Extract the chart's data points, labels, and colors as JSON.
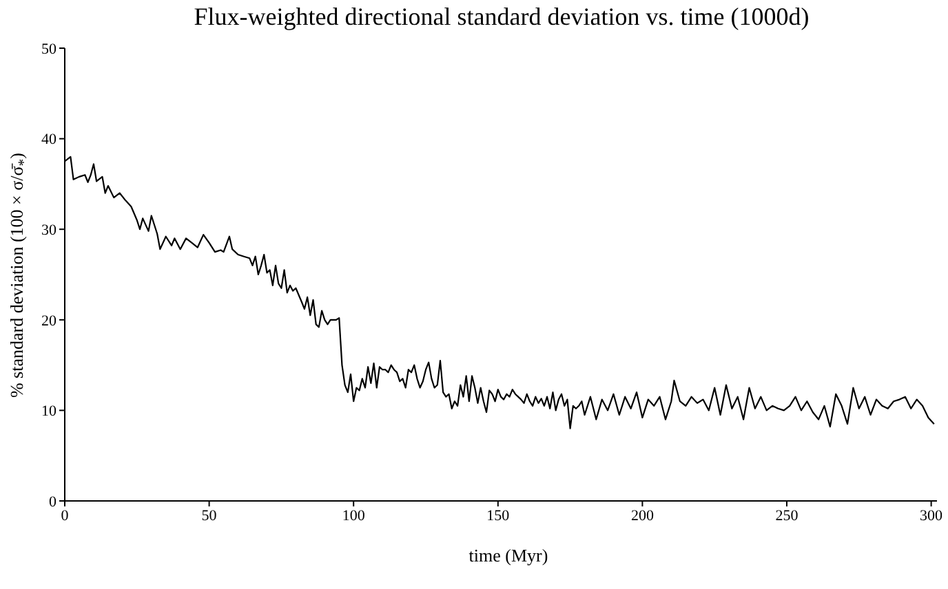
{
  "chart_data": {
    "type": "line",
    "title": "Flux-weighted directional standard deviation vs. time (1000d)",
    "xlabel": "time (Myr)",
    "ylabel": "% standard deviation (100 × σ/σ̄$_{*}$)",
    "xlim": [
      0,
      302
    ],
    "xticks": [
      0,
      50,
      100,
      150,
      200,
      250,
      300
    ],
    "ylim": [
      0,
      50
    ],
    "yticks": [
      0,
      10,
      20,
      30,
      40,
      50
    ],
    "grid": false,
    "legend": false,
    "marker": "none",
    "line_style": "solid",
    "series": [
      {
        "color": "#000000",
        "x": [
          0,
          2,
          3,
          5,
          7,
          8,
          9,
          10,
          11,
          13,
          14,
          15,
          17,
          19,
          21,
          23,
          25,
          26,
          27,
          29,
          30,
          32,
          33,
          35,
          37,
          38,
          40,
          42,
          44,
          46,
          48,
          50,
          52,
          54,
          55,
          57,
          58,
          60,
          62,
          64,
          65,
          66,
          67,
          68,
          69,
          70,
          71,
          72,
          73,
          74,
          75,
          76,
          77,
          78,
          79,
          80,
          82,
          83,
          84,
          85,
          86,
          87,
          88,
          89,
          90,
          91,
          92,
          94,
          95,
          96,
          97,
          98,
          99,
          100,
          101,
          102,
          103,
          104,
          105,
          106,
          107,
          108,
          109,
          110,
          111,
          112,
          113,
          114,
          115,
          116,
          117,
          118,
          119,
          120,
          121,
          122,
          123,
          124,
          125,
          126,
          127,
          128,
          129,
          130,
          131,
          132,
          133,
          134,
          135,
          136,
          137,
          138,
          139,
          140,
          141,
          142,
          143,
          144,
          145,
          146,
          147,
          148,
          149,
          150,
          151,
          152,
          153,
          154,
          155,
          156,
          157,
          158,
          159,
          160,
          161,
          162,
          163,
          164,
          165,
          166,
          167,
          168,
          169,
          170,
          171,
          172,
          173,
          174,
          175,
          176,
          177,
          178,
          179,
          180,
          182,
          184,
          186,
          188,
          190,
          192,
          194,
          196,
          198,
          200,
          202,
          204,
          206,
          208,
          210,
          211,
          213,
          215,
          217,
          219,
          221,
          223,
          225,
          227,
          229,
          231,
          233,
          235,
          237,
          239,
          241,
          243,
          245,
          247,
          249,
          251,
          253,
          255,
          257,
          259,
          261,
          263,
          265,
          267,
          269,
          271,
          273,
          275,
          277,
          279,
          281,
          283,
          285,
          287,
          289,
          291,
          293,
          295,
          297,
          299,
          301
        ],
        "values": [
          37.5,
          38,
          35.5,
          35.8,
          36,
          35.2,
          36,
          37.2,
          35.3,
          35.8,
          34,
          34.8,
          33.5,
          34,
          33.2,
          32.5,
          31,
          30,
          31.2,
          29.8,
          31.5,
          29.5,
          27.8,
          29.2,
          28.2,
          29,
          27.8,
          29,
          28.5,
          28,
          29.4,
          28.5,
          27.5,
          27.7,
          27.5,
          29.2,
          27.8,
          27.2,
          27,
          26.8,
          26,
          27,
          25,
          26,
          27.2,
          25.2,
          25.5,
          23.8,
          26,
          24,
          23.5,
          25.5,
          23,
          23.8,
          23.2,
          23.5,
          22,
          21.2,
          22.5,
          20.5,
          22.2,
          19.5,
          19.2,
          21,
          20,
          19.5,
          20,
          20,
          20.2,
          15,
          12.8,
          12,
          14,
          11,
          12.5,
          12.2,
          13.5,
          12.5,
          14.8,
          13,
          15.2,
          12.5,
          14.8,
          14.5,
          14.5,
          14.2,
          15,
          14.5,
          14.2,
          13.2,
          13.5,
          12.5,
          14.5,
          14.2,
          15,
          13.5,
          12.5,
          13.2,
          14.5,
          15.3,
          13.5,
          12.5,
          12.8,
          15.5,
          12,
          11.5,
          11.8,
          10.2,
          11,
          10.5,
          12.8,
          11.5,
          13.8,
          11,
          13.8,
          12.5,
          10.8,
          12.5,
          11,
          9.8,
          12.2,
          11.8,
          11,
          12.3,
          11.5,
          11.2,
          11.8,
          11.5,
          12.3,
          11.8,
          11.5,
          11.2,
          10.8,
          11.8,
          11,
          10.5,
          11.5,
          10.8,
          11.3,
          10.5,
          11.5,
          10.2,
          12,
          10,
          11.2,
          11.8,
          10.5,
          11.2,
          8,
          10.5,
          10.2,
          10.5,
          11,
          9.5,
          11.5,
          9,
          11.2,
          10,
          11.8,
          9.5,
          11.5,
          10.2,
          12,
          9.2,
          11.2,
          10.5,
          11.5,
          9,
          11,
          13.3,
          11,
          10.5,
          11.5,
          10.8,
          11.2,
          10,
          12.5,
          9.5,
          12.8,
          10.2,
          11.5,
          9,
          12.5,
          10.2,
          11.5,
          10,
          10.5,
          10.2,
          10,
          10.5,
          11.5,
          10,
          11,
          9.8,
          9,
          10.5,
          8.2,
          11.8,
          10.5,
          8.5,
          12.5,
          10.2,
          11.5,
          9.5,
          11.2,
          10.5,
          10.2,
          11,
          11.2,
          11.5,
          10.2,
          11.2,
          10.5,
          9.2,
          8.5
        ]
      }
    ]
  }
}
